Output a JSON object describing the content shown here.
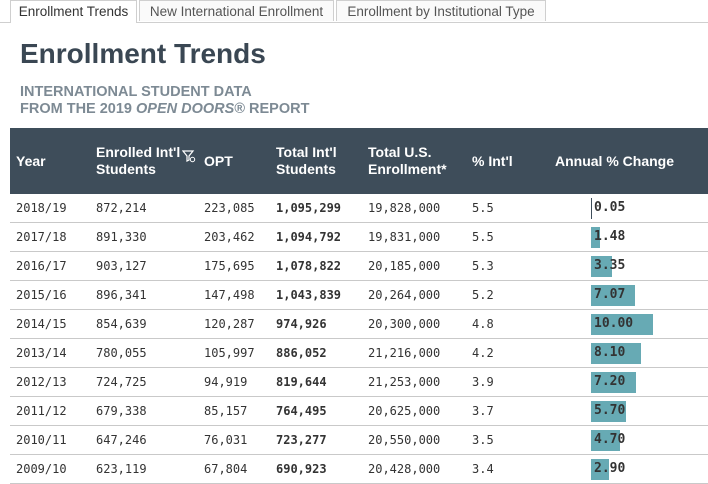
{
  "tabs": [
    {
      "label": "Enrollment Trends",
      "active": true
    },
    {
      "label": "New International Enrollment",
      "active": false
    },
    {
      "label": "Enrollment by Institutional Type",
      "active": false
    }
  ],
  "page_title": "Enrollment Trends",
  "subtitle": {
    "line1": "INTERNATIONAL STUDENT DATA",
    "line2_prefix": "FROM THE 2019 ",
    "line2_italic": "OPEN DOORS",
    "line2_suffix": "® REPORT"
  },
  "table": {
    "headers": {
      "year": "Year",
      "enrolled_line1": "Enrolled Int'l",
      "enrolled_line2": "Students",
      "opt": "OPT",
      "total_line1": "Total Int'l",
      "total_line2": "Students",
      "us_line1": "Total U.S.",
      "us_line2": "Enrollment*",
      "pct": "% Int'l",
      "change": "Annual % Change"
    },
    "rows": [
      {
        "year": "2018/19",
        "enrolled": "872,214",
        "opt": "223,085",
        "total": "1,095,299",
        "us": "19,828,000",
        "pct": "5.5",
        "change": "0.05",
        "change_value": 0.05
      },
      {
        "year": "2017/18",
        "enrolled": "891,330",
        "opt": "203,462",
        "total": "1,094,792",
        "us": "19,831,000",
        "pct": "5.5",
        "change": "1.48",
        "change_value": 1.48
      },
      {
        "year": "2016/17",
        "enrolled": "903,127",
        "opt": "175,695",
        "total": "1,078,822",
        "us": "20,185,000",
        "pct": "5.3",
        "change": "3.35",
        "change_value": 3.35
      },
      {
        "year": "2015/16",
        "enrolled": "896,341",
        "opt": "147,498",
        "total": "1,043,839",
        "us": "20,264,000",
        "pct": "5.2",
        "change": "7.07",
        "change_value": 7.07
      },
      {
        "year": "2014/15",
        "enrolled": "854,639",
        "opt": "120,287",
        "total": "974,926",
        "us": "20,300,000",
        "pct": "4.8",
        "change": "10.00",
        "change_value": 10.0
      },
      {
        "year": "2013/14",
        "enrolled": "780,055",
        "opt": "105,997",
        "total": "886,052",
        "us": "21,216,000",
        "pct": "4.2",
        "change": "8.10",
        "change_value": 8.1
      },
      {
        "year": "2012/13",
        "enrolled": "724,725",
        "opt": "94,919",
        "total": "819,644",
        "us": "21,253,000",
        "pct": "3.9",
        "change": "7.20",
        "change_value": 7.2
      },
      {
        "year": "2011/12",
        "enrolled": "679,338",
        "opt": "85,157",
        "total": "764,495",
        "us": "20,625,000",
        "pct": "3.7",
        "change": "5.70",
        "change_value": 5.7
      },
      {
        "year": "2010/11",
        "enrolled": "647,246",
        "opt": "76,031",
        "total": "723,277",
        "us": "20,550,000",
        "pct": "3.5",
        "change": "4.70",
        "change_value": 4.7
      },
      {
        "year": "2009/10",
        "enrolled": "623,119",
        "opt": "67,804",
        "total": "690,923",
        "us": "20,428,000",
        "pct": "3.4",
        "change": "2.90",
        "change_value": 2.9
      }
    ]
  },
  "colors": {
    "header_bg": "#3e4d5a",
    "bar": "#67aab4",
    "title": "#3a4753",
    "subtitle": "#7d8a94"
  },
  "icons": {
    "filter": "filter-icon"
  }
}
